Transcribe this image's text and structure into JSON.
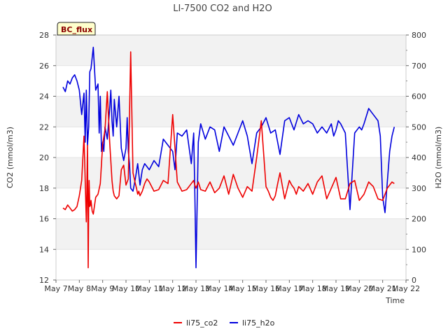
{
  "chart_data": {
    "type": "line",
    "title": "LI-7500 CO2 and H2O",
    "site_label": "BC_flux",
    "xlabel": "Time",
    "ylabel_left": "CO2 (mmol/m3)",
    "ylabel_right": "H2O (mmol/m3)",
    "x_ticks": [
      "May 7",
      "May 8",
      "May 9",
      "May 10",
      "May 11",
      "May 12",
      "May 13",
      "May 14",
      "May 15",
      "May 16",
      "May 17",
      "May 18",
      "May 19",
      "May 20",
      "May 21",
      "May 22"
    ],
    "xlim": [
      0,
      15
    ],
    "ylim_left": [
      12,
      28
    ],
    "yticks_left": [
      12,
      14,
      16,
      18,
      20,
      22,
      24,
      26,
      28
    ],
    "ylim_right": [
      0,
      800
    ],
    "yticks_right": [
      0,
      100,
      200,
      300,
      400,
      500,
      600,
      700,
      800
    ],
    "grid": true,
    "legend_position": "bottom",
    "colors": {
      "co2": "#ee0000",
      "h2o": "#0000dd",
      "band": "#f2f2f2",
      "site_bg": "#ffffcc"
    },
    "series": [
      {
        "name": "li75_co2",
        "axis": "left",
        "x": [
          0.3,
          0.4,
          0.5,
          0.6,
          0.7,
          0.8,
          0.9,
          1.0,
          1.1,
          1.2,
          1.3,
          1.32,
          1.35,
          1.38,
          1.4,
          1.42,
          1.45,
          1.48,
          1.5,
          1.55,
          1.6,
          1.7,
          1.8,
          1.9,
          2.0,
          2.1,
          2.2,
          2.3,
          2.4,
          2.45,
          2.5,
          2.55,
          2.6,
          2.7,
          2.8,
          2.9,
          3.0,
          3.1,
          3.2,
          3.3,
          3.4,
          3.45,
          3.5,
          3.55,
          3.6,
          3.7,
          3.8,
          3.9,
          4.0,
          4.2,
          4.4,
          4.6,
          4.8,
          5.0,
          5.2,
          5.4,
          5.6,
          5.8,
          5.9,
          5.95,
          6.0,
          6.1,
          6.2,
          6.4,
          6.6,
          6.8,
          7.0,
          7.2,
          7.4,
          7.6,
          7.8,
          8.0,
          8.2,
          8.4,
          8.6,
          8.8,
          9.0,
          9.1,
          9.2,
          9.3,
          9.4,
          9.5,
          9.6,
          9.8,
          10.0,
          10.1,
          10.2,
          10.3,
          10.4,
          10.6,
          10.8,
          11.0,
          11.2,
          11.4,
          11.6,
          11.8,
          12.0,
          12.2,
          12.4,
          12.6,
          12.8,
          13.0,
          13.2,
          13.4,
          13.6,
          13.8,
          14.0,
          14.2,
          14.4,
          14.5
        ],
        "values": [
          16.7,
          16.6,
          16.9,
          16.7,
          16.5,
          16.6,
          16.8,
          17.5,
          18.5,
          21.4,
          15.8,
          17.5,
          20.8,
          12.8,
          17.0,
          18.5,
          16.8,
          16.9,
          17.2,
          16.5,
          16.3,
          17.4,
          17.6,
          18.3,
          20.9,
          21.8,
          24.3,
          21.0,
          18.5,
          17.8,
          17.5,
          17.4,
          17.3,
          17.5,
          19.2,
          19.5,
          18.2,
          18.6,
          26.9,
          19.0,
          18.3,
          18.0,
          17.6,
          17.8,
          17.5,
          17.8,
          18.3,
          18.6,
          18.4,
          17.8,
          17.9,
          18.5,
          18.3,
          22.8,
          18.4,
          17.8,
          17.9,
          18.3,
          18.5,
          18.2,
          18.0,
          18.4,
          17.9,
          17.8,
          18.4,
          17.7,
          18.0,
          18.8,
          17.6,
          18.9,
          18.0,
          17.4,
          18.1,
          17.8,
          20.0,
          22.4,
          18.1,
          17.8,
          17.4,
          17.2,
          17.5,
          18.3,
          19.0,
          17.3,
          18.5,
          18.2,
          18.0,
          17.6,
          18.1,
          17.8,
          18.3,
          17.6,
          18.4,
          18.8,
          17.3,
          18.0,
          18.7,
          17.3,
          17.3,
          18.3,
          18.5,
          17.2,
          17.6,
          18.4,
          18.1,
          17.3,
          17.2,
          18.0,
          18.4,
          18.3
        ]
      },
      {
        "name": "li75_h2o",
        "axis": "right",
        "x": [
          0.3,
          0.4,
          0.5,
          0.6,
          0.7,
          0.8,
          0.9,
          1.0,
          1.1,
          1.2,
          1.25,
          1.3,
          1.35,
          1.4,
          1.45,
          1.5,
          1.6,
          1.7,
          1.8,
          1.85,
          1.9,
          1.95,
          2.0,
          2.05,
          2.1,
          2.2,
          2.3,
          2.35,
          2.4,
          2.45,
          2.5,
          2.6,
          2.7,
          2.8,
          2.9,
          3.0,
          3.05,
          3.1,
          3.15,
          3.2,
          3.3,
          3.4,
          3.5,
          3.6,
          3.7,
          3.8,
          3.9,
          4.0,
          4.2,
          4.4,
          4.6,
          4.8,
          5.0,
          5.1,
          5.2,
          5.4,
          5.6,
          5.8,
          5.9,
          5.95,
          6.0,
          6.1,
          6.2,
          6.4,
          6.6,
          6.8,
          7.0,
          7.2,
          7.4,
          7.6,
          7.8,
          8.0,
          8.2,
          8.4,
          8.6,
          8.8,
          9.0,
          9.2,
          9.4,
          9.6,
          9.8,
          10.0,
          10.2,
          10.4,
          10.6,
          10.8,
          11.0,
          11.2,
          11.4,
          11.6,
          11.8,
          11.9,
          12.0,
          12.1,
          12.2,
          12.4,
          12.6,
          12.8,
          13.0,
          13.1,
          13.2,
          13.4,
          13.6,
          13.8,
          13.9,
          14.0,
          14.1,
          14.2,
          14.3,
          14.4,
          14.5
        ],
        "values": [
          630,
          615,
          650,
          640,
          660,
          670,
          650,
          620,
          540,
          610,
          450,
          620,
          440,
          500,
          680,
          690,
          760,
          620,
          640,
          480,
          600,
          420,
          450,
          420,
          500,
          460,
          560,
          620,
          520,
          470,
          590,
          500,
          600,
          430,
          390,
          430,
          530,
          420,
          380,
          300,
          290,
          330,
          380,
          310,
          360,
          380,
          370,
          360,
          390,
          370,
          460,
          440,
          420,
          360,
          480,
          470,
          490,
          380,
          480,
          290,
          40,
          450,
          510,
          460,
          500,
          490,
          420,
          500,
          470,
          440,
          480,
          520,
          470,
          380,
          480,
          500,
          530,
          480,
          490,
          410,
          520,
          530,
          490,
          540,
          510,
          520,
          510,
          480,
          500,
          480,
          510,
          470,
          490,
          520,
          510,
          480,
          230,
          480,
          500,
          490,
          510,
          560,
          540,
          520,
          470,
          270,
          220,
          320,
          420,
          470,
          500
        ]
      }
    ]
  },
  "legend": {
    "items": [
      {
        "label": "li75_co2",
        "color": "#ee0000"
      },
      {
        "label": "li75_h2o",
        "color": "#0000dd"
      }
    ]
  }
}
